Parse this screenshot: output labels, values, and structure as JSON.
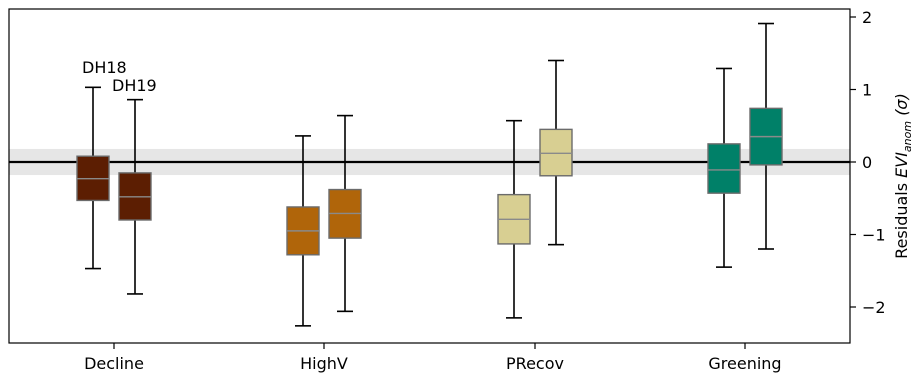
{
  "chart_data": {
    "type": "box",
    "categories": [
      "Decline",
      "HighV",
      "PRecov",
      "Greening"
    ],
    "series": [
      {
        "name": "DH18",
        "boxes": [
          {
            "whislo": -1.47,
            "q1": -0.53,
            "med": -0.23,
            "q3": 0.08,
            "whishi": 1.03
          },
          {
            "whislo": -2.26,
            "q1": -1.28,
            "med": -0.95,
            "q3": -0.62,
            "whishi": 0.36
          },
          {
            "whislo": -2.15,
            "q1": -1.13,
            "med": -0.79,
            "q3": -0.45,
            "whishi": 0.57
          },
          {
            "whislo": -1.45,
            "q1": -0.43,
            "med": -0.11,
            "q3": 0.25,
            "whishi": 1.29
          }
        ]
      },
      {
        "name": "DH19",
        "boxes": [
          {
            "whislo": -1.82,
            "q1": -0.8,
            "med": -0.48,
            "q3": -0.15,
            "whishi": 0.86
          },
          {
            "whislo": -2.06,
            "q1": -1.05,
            "med": -0.71,
            "q3": -0.38,
            "whishi": 0.64
          },
          {
            "whislo": -1.14,
            "q1": -0.19,
            "med": 0.12,
            "q3": 0.45,
            "whishi": 1.4
          },
          {
            "whislo": -1.2,
            "q1": -0.04,
            "med": 0.35,
            "q3": 0.74,
            "whishi": 1.91
          }
        ]
      }
    ],
    "colors": [
      "#5c1e02",
      "#b0650a",
      "#d8cf92",
      "#008068"
    ],
    "box_edge_color": "#6b6b6b",
    "median_color": "#8a8a8a",
    "annotations": [
      "DH18",
      "DH19"
    ],
    "reference_line": 0,
    "reference_band": [
      -0.18,
      0.18
    ],
    "band_color": "#e6e6e6",
    "ylabel_main": "Residuals ",
    "ylabel_italic": "EVI",
    "ylabel_sub": "anom",
    "ylabel_unit": " (σ)",
    "yticks": [
      2,
      1,
      0,
      -1,
      -2
    ],
    "ytick_labels": [
      "2",
      "1",
      "0",
      "−1",
      "−2"
    ],
    "ylim": [
      -2.52,
      2.12
    ],
    "y_axis_side": "right",
    "grid": false
  }
}
